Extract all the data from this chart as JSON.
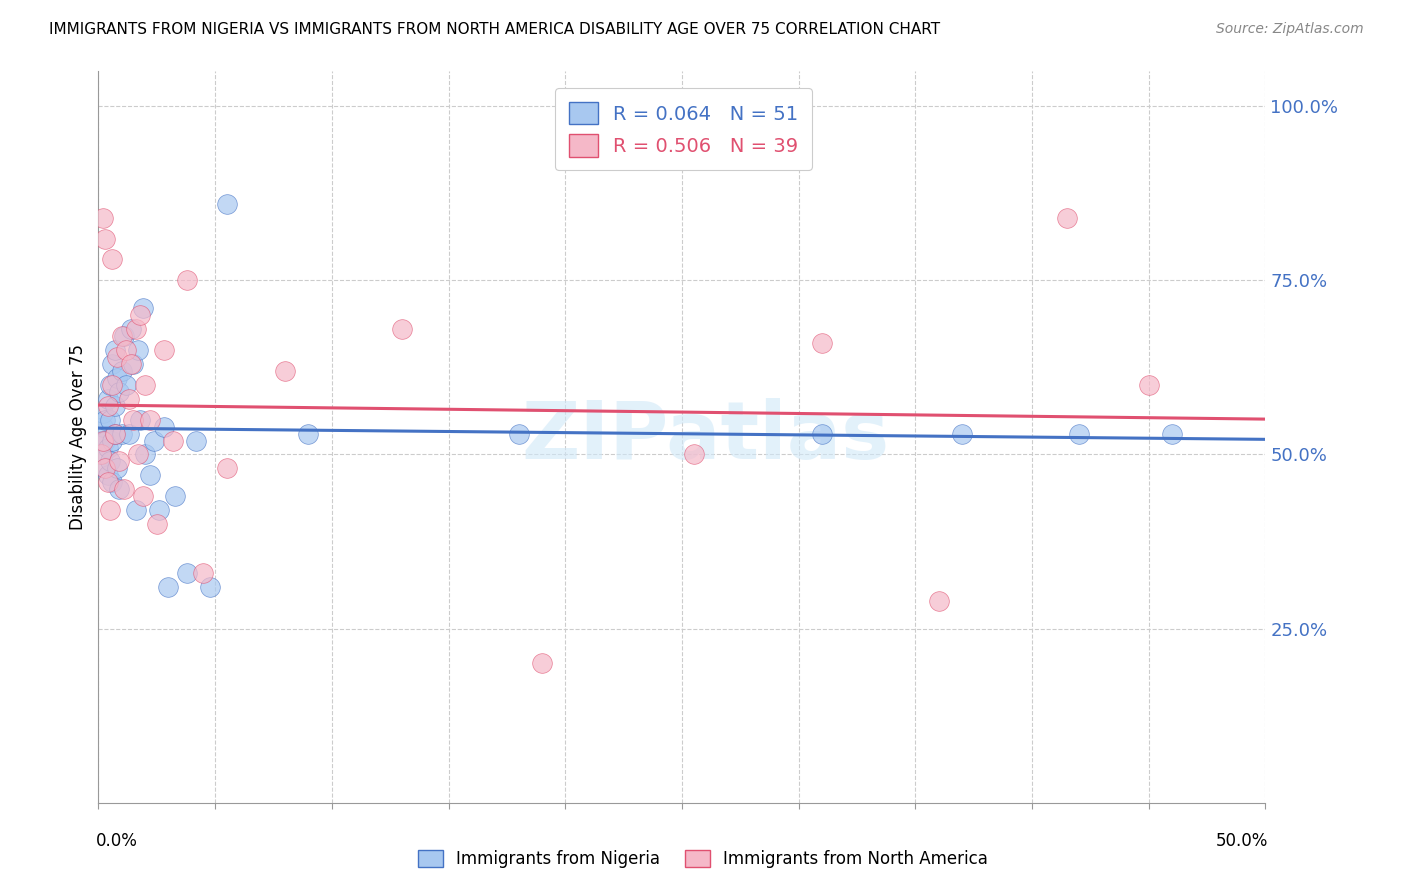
{
  "title": "IMMIGRANTS FROM NIGERIA VS IMMIGRANTS FROM NORTH AMERICA DISABILITY AGE OVER 75 CORRELATION CHART",
  "source": "Source: ZipAtlas.com",
  "ylabel": "Disability Age Over 75",
  "xlim": [
    0.0,
    0.5
  ],
  "ylim": [
    0.0,
    1.05
  ],
  "legend1_R": "0.064",
  "legend1_N": "51",
  "legend2_R": "0.506",
  "legend2_N": "39",
  "series1_color": "#a8c8f0",
  "series2_color": "#f5b8c8",
  "trendline1_color": "#4472c4",
  "trendline2_color": "#e05070",
  "watermark": "ZIPatlas",
  "nigeria_x": [
    0.001,
    0.002,
    0.002,
    0.002,
    0.003,
    0.003,
    0.003,
    0.004,
    0.004,
    0.004,
    0.005,
    0.005,
    0.005,
    0.006,
    0.006,
    0.006,
    0.007,
    0.007,
    0.007,
    0.008,
    0.008,
    0.009,
    0.009,
    0.01,
    0.01,
    0.011,
    0.012,
    0.013,
    0.014,
    0.015,
    0.016,
    0.017,
    0.018,
    0.019,
    0.02,
    0.022,
    0.024,
    0.026,
    0.028,
    0.03,
    0.033,
    0.038,
    0.042,
    0.048,
    0.055,
    0.09,
    0.18,
    0.31,
    0.37,
    0.42,
    0.46
  ],
  "nigeria_y": [
    0.52,
    0.54,
    0.5,
    0.56,
    0.55,
    0.48,
    0.52,
    0.58,
    0.51,
    0.47,
    0.6,
    0.55,
    0.49,
    0.63,
    0.52,
    0.46,
    0.65,
    0.57,
    0.53,
    0.61,
    0.48,
    0.59,
    0.45,
    0.62,
    0.53,
    0.67,
    0.6,
    0.53,
    0.68,
    0.63,
    0.42,
    0.65,
    0.55,
    0.71,
    0.5,
    0.47,
    0.52,
    0.42,
    0.54,
    0.31,
    0.44,
    0.33,
    0.52,
    0.31,
    0.86,
    0.53,
    0.53,
    0.53,
    0.53,
    0.53,
    0.53
  ],
  "north_america_x": [
    0.001,
    0.002,
    0.002,
    0.003,
    0.003,
    0.004,
    0.004,
    0.005,
    0.006,
    0.006,
    0.007,
    0.008,
    0.009,
    0.01,
    0.011,
    0.012,
    0.013,
    0.014,
    0.015,
    0.016,
    0.017,
    0.018,
    0.019,
    0.02,
    0.022,
    0.025,
    0.028,
    0.032,
    0.038,
    0.045,
    0.055,
    0.08,
    0.13,
    0.19,
    0.255,
    0.31,
    0.36,
    0.415,
    0.45
  ],
  "north_america_y": [
    0.5,
    0.52,
    0.84,
    0.48,
    0.81,
    0.46,
    0.57,
    0.42,
    0.6,
    0.78,
    0.53,
    0.64,
    0.49,
    0.67,
    0.45,
    0.65,
    0.58,
    0.63,
    0.55,
    0.68,
    0.5,
    0.7,
    0.44,
    0.6,
    0.55,
    0.4,
    0.65,
    0.52,
    0.75,
    0.33,
    0.48,
    0.62,
    0.68,
    0.2,
    0.5,
    0.66,
    0.29,
    0.84,
    0.6
  ]
}
